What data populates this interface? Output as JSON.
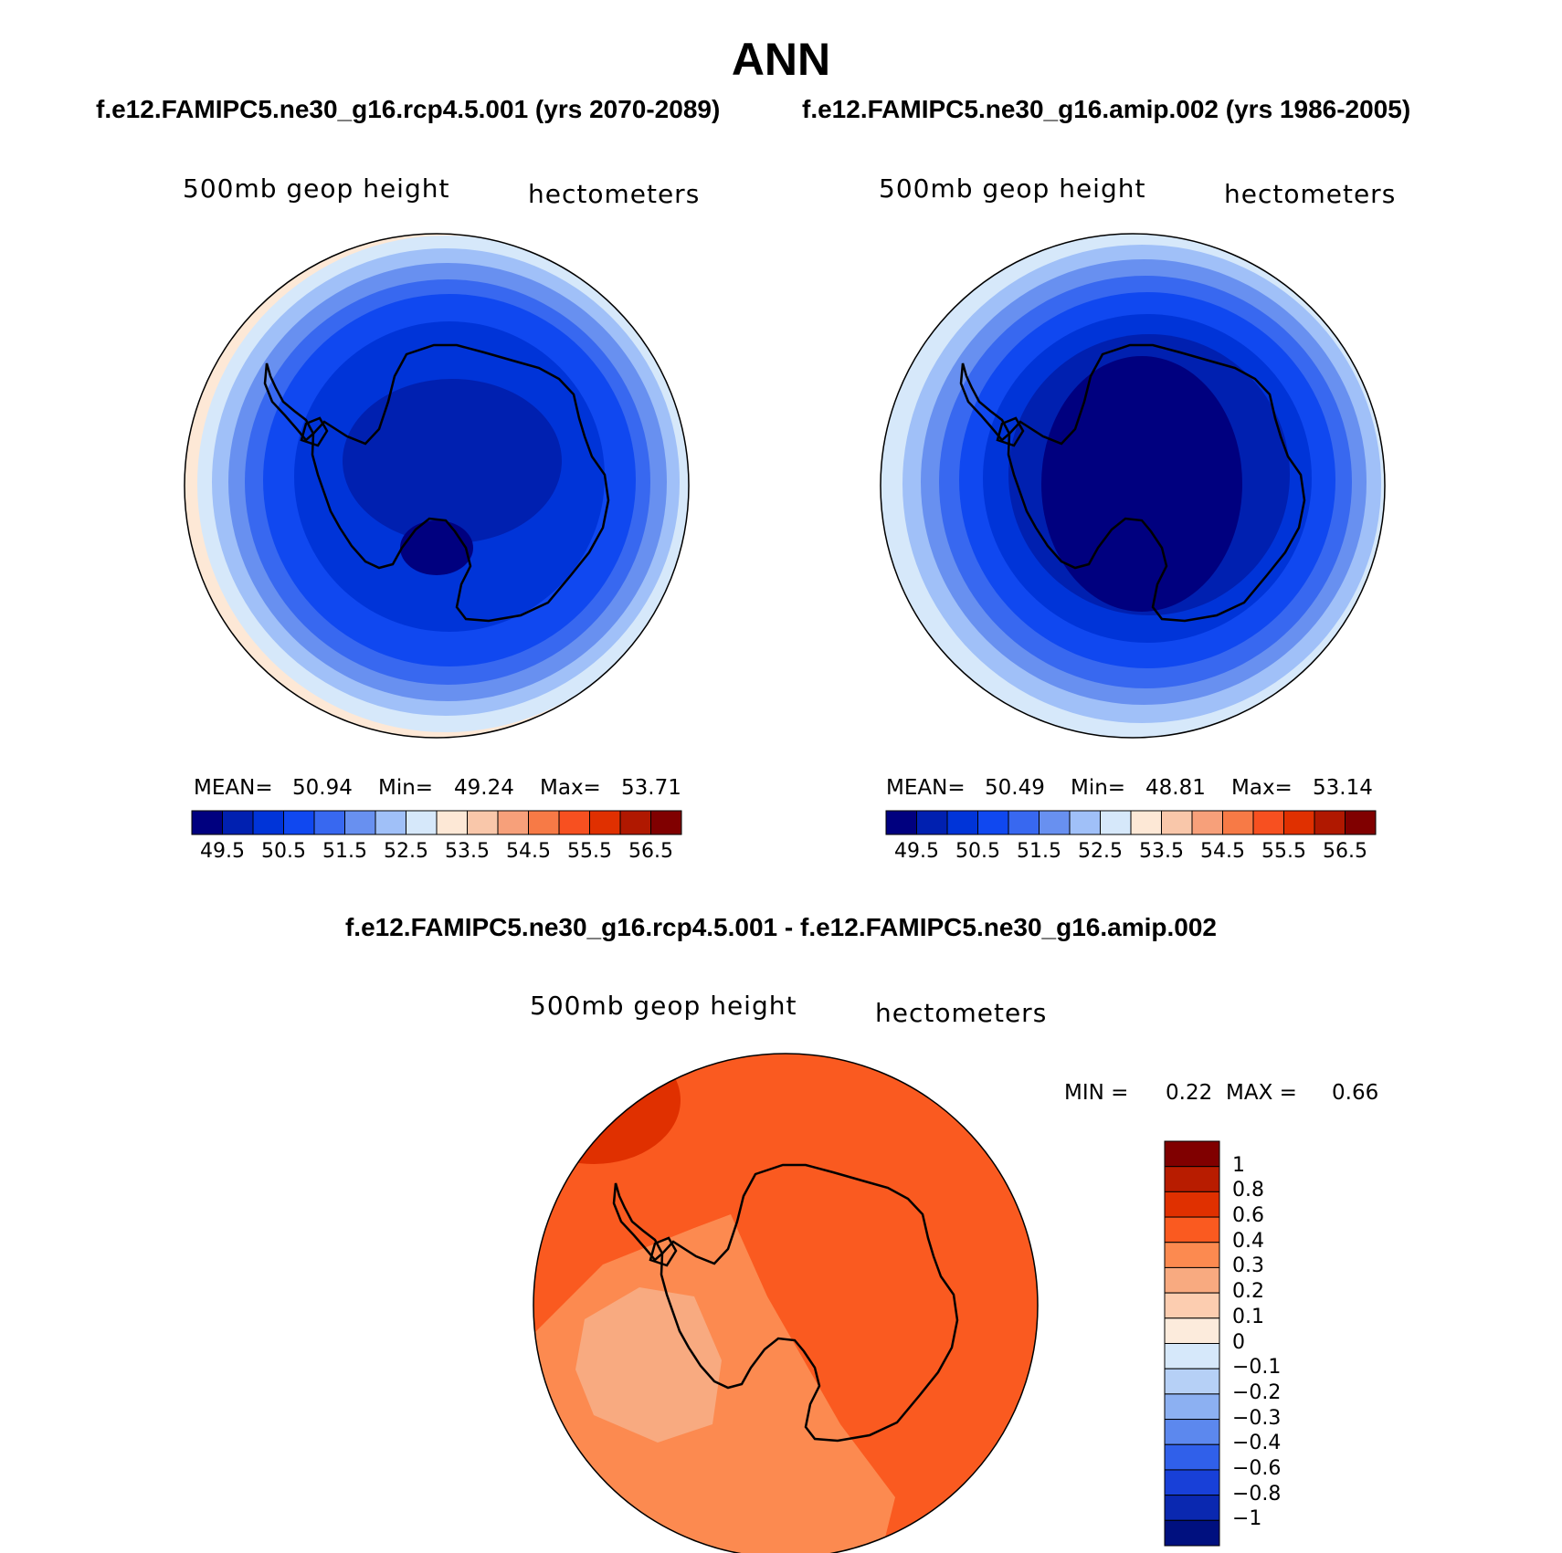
{
  "figure": {
    "title": "ANN",
    "left_case": "f.e12.FAMIPC5.ne30_g16.rcp4.5.001 (yrs 2070-2089)",
    "right_case": "f.e12.FAMIPC5.ne30_g16.amip.002 (yrs 1986-2005)",
    "diff_title": "f.e12.FAMIPC5.ne30_g16.rcp4.5.001 - f.e12.FAMIPC5.ne30_g16.amip.002"
  },
  "panels": [
    {
      "variable": "500mb geop height",
      "units": "hectometers",
      "stats": {
        "mean_label": "MEAN=",
        "mean": "50.94",
        "min_label": "Min=",
        "min": "49.24",
        "max_label": "Max=",
        "max": "53.71"
      }
    },
    {
      "variable": "500mb geop height",
      "units": "hectometers",
      "stats": {
        "mean_label": "MEAN=",
        "mean": "50.49",
        "min_label": "Min=",
        "min": "48.81",
        "max_label": "Max=",
        "max": "53.14"
      }
    },
    {
      "variable": "500mb geop height",
      "units": "hectometers",
      "stats": {
        "min_label": "MIN =",
        "min": "0.22",
        "max_label": "MAX =",
        "max": "0.66"
      }
    }
  ],
  "colorbar_main": {
    "colors": [
      "#00007f",
      "#0020b0",
      "#0034d8",
      "#1048f0",
      "#3868f0",
      "#6890f0",
      "#a0c0f8",
      "#d6e8fa",
      "#fde8d6",
      "#f9c7aa",
      "#f7a07a",
      "#f77a46",
      "#f75020",
      "#e03000",
      "#b01800",
      "#800000"
    ],
    "ticks": [
      "49.5",
      "50.5",
      "51.5",
      "52.5",
      "53.5",
      "54.5",
      "55.5",
      "56.5"
    ]
  },
  "colorbar_diff": {
    "colors": [
      "#800000",
      "#b81c00",
      "#e03000",
      "#fa5a20",
      "#fc8a50",
      "#f8aa80",
      "#fccdb0",
      "#fcebdc",
      "#d6e8fa",
      "#b6d0f6",
      "#8cb0f2",
      "#5c88ee",
      "#3060ea",
      "#1840d8",
      "#0a28b0",
      "#00107f"
    ],
    "ticks": [
      "1",
      "0.8",
      "0.6",
      "0.4",
      "0.3",
      "0.2",
      "0.1",
      "0",
      "−0.1",
      "−0.2",
      "−0.3",
      "−0.4",
      "−0.6",
      "−0.8",
      "−1"
    ]
  }
}
